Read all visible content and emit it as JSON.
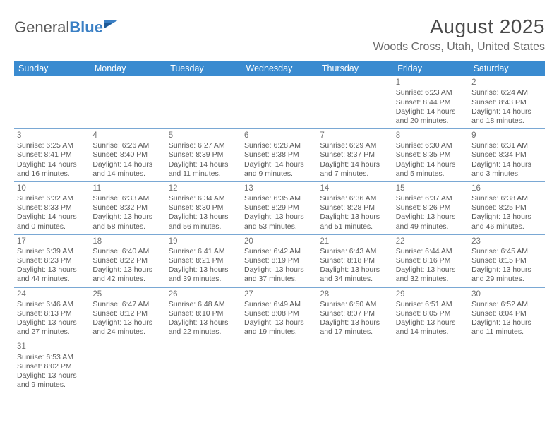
{
  "logo": {
    "text_general": "General",
    "text_blue": "Blue"
  },
  "title": "August 2025",
  "location": "Woods Cross, Utah, United States",
  "colors": {
    "header_bg": "#3a8bd0",
    "header_text": "#ffffff",
    "row_border": "#7aa8d4",
    "body_text": "#5a5a5a",
    "title_text": "#4a4a4a",
    "location_text": "#6a6a6a",
    "logo_blue": "#3a7fc4"
  },
  "day_headers": [
    "Sunday",
    "Monday",
    "Tuesday",
    "Wednesday",
    "Thursday",
    "Friday",
    "Saturday"
  ],
  "weeks": [
    [
      null,
      null,
      null,
      null,
      null,
      {
        "n": "1",
        "sr": "Sunrise: 6:23 AM",
        "ss": "Sunset: 8:44 PM",
        "d1": "Daylight: 14 hours",
        "d2": "and 20 minutes."
      },
      {
        "n": "2",
        "sr": "Sunrise: 6:24 AM",
        "ss": "Sunset: 8:43 PM",
        "d1": "Daylight: 14 hours",
        "d2": "and 18 minutes."
      }
    ],
    [
      {
        "n": "3",
        "sr": "Sunrise: 6:25 AM",
        "ss": "Sunset: 8:41 PM",
        "d1": "Daylight: 14 hours",
        "d2": "and 16 minutes."
      },
      {
        "n": "4",
        "sr": "Sunrise: 6:26 AM",
        "ss": "Sunset: 8:40 PM",
        "d1": "Daylight: 14 hours",
        "d2": "and 14 minutes."
      },
      {
        "n": "5",
        "sr": "Sunrise: 6:27 AM",
        "ss": "Sunset: 8:39 PM",
        "d1": "Daylight: 14 hours",
        "d2": "and 11 minutes."
      },
      {
        "n": "6",
        "sr": "Sunrise: 6:28 AM",
        "ss": "Sunset: 8:38 PM",
        "d1": "Daylight: 14 hours",
        "d2": "and 9 minutes."
      },
      {
        "n": "7",
        "sr": "Sunrise: 6:29 AM",
        "ss": "Sunset: 8:37 PM",
        "d1": "Daylight: 14 hours",
        "d2": "and 7 minutes."
      },
      {
        "n": "8",
        "sr": "Sunrise: 6:30 AM",
        "ss": "Sunset: 8:35 PM",
        "d1": "Daylight: 14 hours",
        "d2": "and 5 minutes."
      },
      {
        "n": "9",
        "sr": "Sunrise: 6:31 AM",
        "ss": "Sunset: 8:34 PM",
        "d1": "Daylight: 14 hours",
        "d2": "and 3 minutes."
      }
    ],
    [
      {
        "n": "10",
        "sr": "Sunrise: 6:32 AM",
        "ss": "Sunset: 8:33 PM",
        "d1": "Daylight: 14 hours",
        "d2": "and 0 minutes."
      },
      {
        "n": "11",
        "sr": "Sunrise: 6:33 AM",
        "ss": "Sunset: 8:32 PM",
        "d1": "Daylight: 13 hours",
        "d2": "and 58 minutes."
      },
      {
        "n": "12",
        "sr": "Sunrise: 6:34 AM",
        "ss": "Sunset: 8:30 PM",
        "d1": "Daylight: 13 hours",
        "d2": "and 56 minutes."
      },
      {
        "n": "13",
        "sr": "Sunrise: 6:35 AM",
        "ss": "Sunset: 8:29 PM",
        "d1": "Daylight: 13 hours",
        "d2": "and 53 minutes."
      },
      {
        "n": "14",
        "sr": "Sunrise: 6:36 AM",
        "ss": "Sunset: 8:28 PM",
        "d1": "Daylight: 13 hours",
        "d2": "and 51 minutes."
      },
      {
        "n": "15",
        "sr": "Sunrise: 6:37 AM",
        "ss": "Sunset: 8:26 PM",
        "d1": "Daylight: 13 hours",
        "d2": "and 49 minutes."
      },
      {
        "n": "16",
        "sr": "Sunrise: 6:38 AM",
        "ss": "Sunset: 8:25 PM",
        "d1": "Daylight: 13 hours",
        "d2": "and 46 minutes."
      }
    ],
    [
      {
        "n": "17",
        "sr": "Sunrise: 6:39 AM",
        "ss": "Sunset: 8:23 PM",
        "d1": "Daylight: 13 hours",
        "d2": "and 44 minutes."
      },
      {
        "n": "18",
        "sr": "Sunrise: 6:40 AM",
        "ss": "Sunset: 8:22 PM",
        "d1": "Daylight: 13 hours",
        "d2": "and 42 minutes."
      },
      {
        "n": "19",
        "sr": "Sunrise: 6:41 AM",
        "ss": "Sunset: 8:21 PM",
        "d1": "Daylight: 13 hours",
        "d2": "and 39 minutes."
      },
      {
        "n": "20",
        "sr": "Sunrise: 6:42 AM",
        "ss": "Sunset: 8:19 PM",
        "d1": "Daylight: 13 hours",
        "d2": "and 37 minutes."
      },
      {
        "n": "21",
        "sr": "Sunrise: 6:43 AM",
        "ss": "Sunset: 8:18 PM",
        "d1": "Daylight: 13 hours",
        "d2": "and 34 minutes."
      },
      {
        "n": "22",
        "sr": "Sunrise: 6:44 AM",
        "ss": "Sunset: 8:16 PM",
        "d1": "Daylight: 13 hours",
        "d2": "and 32 minutes."
      },
      {
        "n": "23",
        "sr": "Sunrise: 6:45 AM",
        "ss": "Sunset: 8:15 PM",
        "d1": "Daylight: 13 hours",
        "d2": "and 29 minutes."
      }
    ],
    [
      {
        "n": "24",
        "sr": "Sunrise: 6:46 AM",
        "ss": "Sunset: 8:13 PM",
        "d1": "Daylight: 13 hours",
        "d2": "and 27 minutes."
      },
      {
        "n": "25",
        "sr": "Sunrise: 6:47 AM",
        "ss": "Sunset: 8:12 PM",
        "d1": "Daylight: 13 hours",
        "d2": "and 24 minutes."
      },
      {
        "n": "26",
        "sr": "Sunrise: 6:48 AM",
        "ss": "Sunset: 8:10 PM",
        "d1": "Daylight: 13 hours",
        "d2": "and 22 minutes."
      },
      {
        "n": "27",
        "sr": "Sunrise: 6:49 AM",
        "ss": "Sunset: 8:08 PM",
        "d1": "Daylight: 13 hours",
        "d2": "and 19 minutes."
      },
      {
        "n": "28",
        "sr": "Sunrise: 6:50 AM",
        "ss": "Sunset: 8:07 PM",
        "d1": "Daylight: 13 hours",
        "d2": "and 17 minutes."
      },
      {
        "n": "29",
        "sr": "Sunrise: 6:51 AM",
        "ss": "Sunset: 8:05 PM",
        "d1": "Daylight: 13 hours",
        "d2": "and 14 minutes."
      },
      {
        "n": "30",
        "sr": "Sunrise: 6:52 AM",
        "ss": "Sunset: 8:04 PM",
        "d1": "Daylight: 13 hours",
        "d2": "and 11 minutes."
      }
    ],
    [
      {
        "n": "31",
        "sr": "Sunrise: 6:53 AM",
        "ss": "Sunset: 8:02 PM",
        "d1": "Daylight: 13 hours",
        "d2": "and 9 minutes."
      },
      null,
      null,
      null,
      null,
      null,
      null
    ]
  ]
}
